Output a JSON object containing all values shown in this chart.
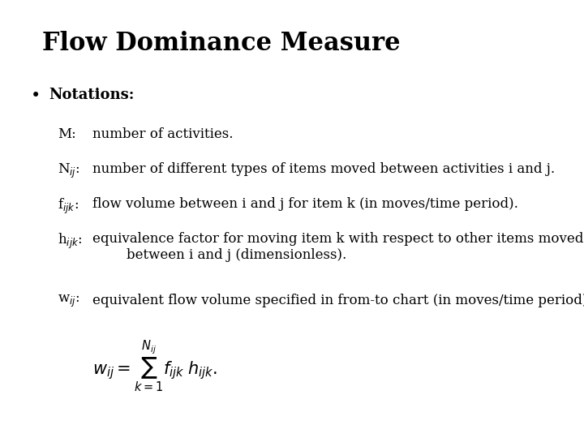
{
  "title": "Flow Dominance Measure",
  "background_color": "#ffffff",
  "text_color": "#000000",
  "title_fontsize": 22,
  "body_fontsize": 13,
  "bullet_label": "Notations:",
  "notations": [
    {
      "symbol": "M:",
      "description": "number of activities."
    },
    {
      "symbol": "N$_{ij}$:",
      "description": "number of different types of items moved between activities i and j."
    },
    {
      "symbol": "f$_{ijk}$:",
      "description": "flow volume between i and j for item k (in moves/time period)."
    },
    {
      "symbol": "h$_{ijk}$:",
      "description": "equivalence factor for moving item k with respect to other items moved\n        between i and j (dimensionless)."
    },
    {
      "symbol": "w$_{ij}$:",
      "description": "equivalent flow volume specified in from-to chart (in moves/time period),"
    }
  ],
  "formula": "$w_{ij} = \\sum_{k=1}^{N_{ij}} f_{ijk}\\; h_{ijk}.$"
}
